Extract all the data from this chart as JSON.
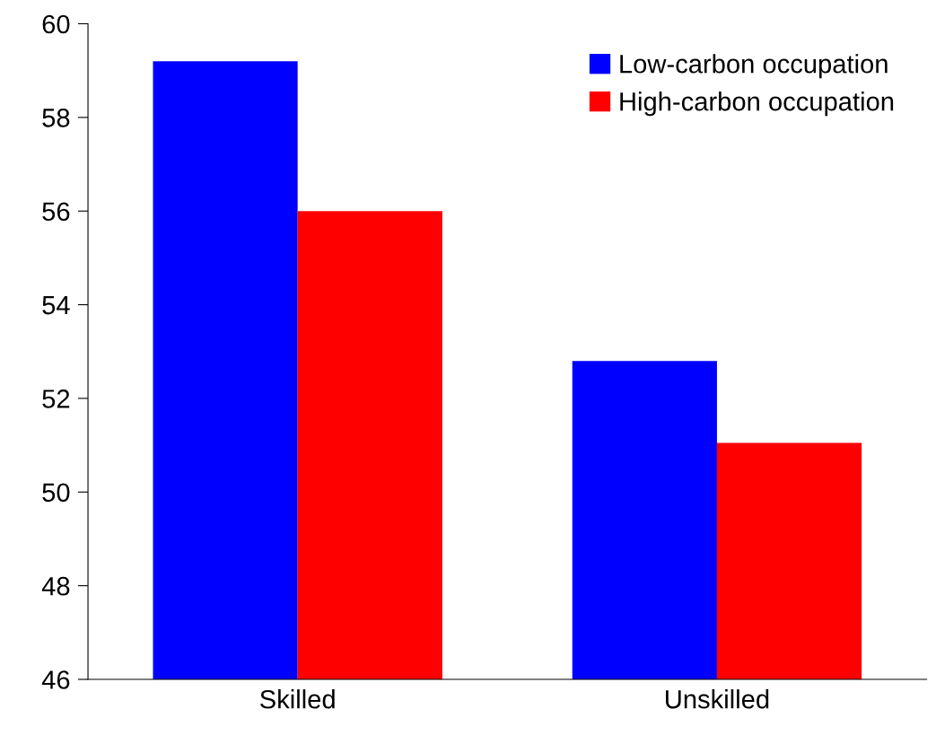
{
  "chart_data": {
    "type": "bar",
    "categories": [
      "Skilled",
      "Unskilled"
    ],
    "series": [
      {
        "name": "Low-carbon occupation",
        "color": "#0000ff",
        "values": [
          59.2,
          52.8
        ]
      },
      {
        "name": "High-carbon occupation",
        "color": "#ff0000",
        "values": [
          56.0,
          51.05
        ]
      }
    ],
    "ylim": [
      46,
      60
    ],
    "yticks": [
      46,
      48,
      50,
      52,
      54,
      56,
      58,
      60
    ],
    "grid": false,
    "legend": "top right"
  }
}
